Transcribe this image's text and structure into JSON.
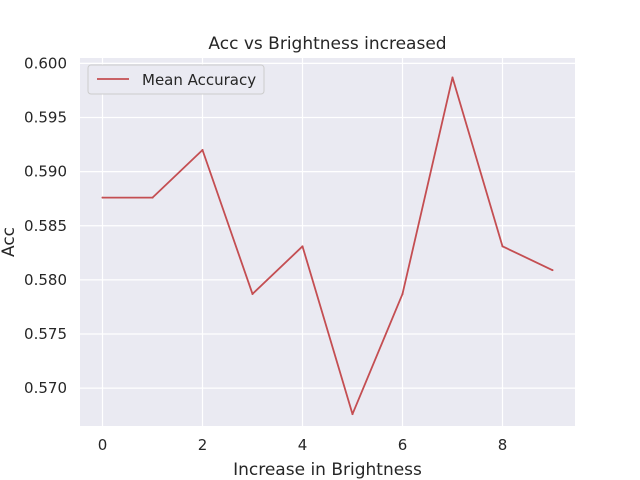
{
  "chart_data": {
    "type": "line",
    "title": "Acc vs Brightness increased",
    "xlabel": "Increase in Brightness",
    "ylabel": "Acc",
    "x": [
      0,
      1,
      2,
      3,
      4,
      5,
      6,
      7,
      8,
      9
    ],
    "series": [
      {
        "name": "Mean Accuracy",
        "values": [
          0.5876,
          0.5876,
          0.592,
          0.5787,
          0.5831,
          0.5676,
          0.5787,
          0.5987,
          0.5831,
          0.5809
        ],
        "color": "#c44e52"
      }
    ],
    "xlim": [
      -0.45,
      9.45
    ],
    "ylim": [
      0.5665,
      0.6005
    ],
    "xticks": [
      "0",
      "2",
      "4",
      "6",
      "8"
    ],
    "yticks": [
      "0.570",
      "0.575",
      "0.580",
      "0.585",
      "0.590",
      "0.595",
      "0.600"
    ],
    "grid": true,
    "legend_position": "top-left",
    "background_color": "#eaeaf2",
    "grid_color": "#ffffff"
  }
}
